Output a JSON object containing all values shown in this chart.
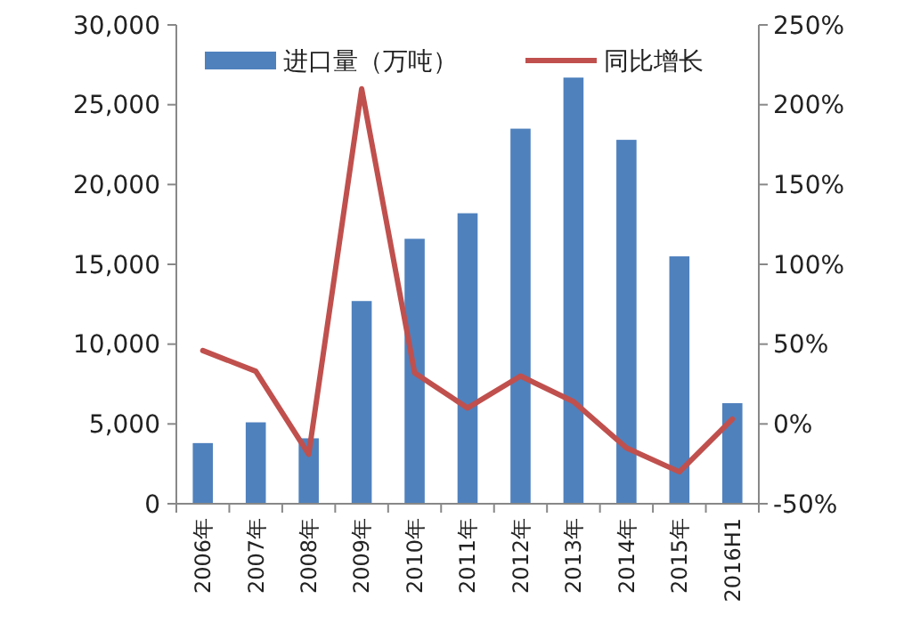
{
  "chart_data": {
    "type": "bar",
    "categories": [
      "2006年",
      "2007年",
      "2008年",
      "2009年",
      "2010年",
      "2011年",
      "2012年",
      "2013年",
      "2014年",
      "2015年",
      "2016H1"
    ],
    "series": [
      {
        "name": "进口量（万吨）",
        "color": "#4f81bd",
        "values": [
          3800,
          5100,
          4100,
          12700,
          16600,
          18200,
          23500,
          26700,
          22800,
          15500,
          6300
        ]
      },
      {
        "name": "同比增长",
        "type": "line",
        "axis": "y2",
        "color": "#c0504d",
        "values": [
          46,
          33,
          -19,
          210,
          32,
          10,
          30,
          14,
          -15,
          -30,
          3
        ]
      }
    ],
    "ylim": [
      0,
      30000
    ],
    "yticks": [
      {
        "value": 0,
        "label": "0"
      },
      {
        "value": 5000,
        "label": "5,000"
      },
      {
        "value": 10000,
        "label": "10,000"
      },
      {
        "value": 15000,
        "label": "15,000"
      },
      {
        "value": 20000,
        "label": "20,000"
      },
      {
        "value": 25000,
        "label": "25,000"
      },
      {
        "value": 30000,
        "label": "30,000"
      }
    ],
    "y2lim": [
      -50,
      250
    ],
    "y2ticks": [
      {
        "value": -50,
        "label": "-50%"
      },
      {
        "value": 0,
        "label": "0%"
      },
      {
        "value": 50,
        "label": "50%"
      },
      {
        "value": 100,
        "label": "100%"
      },
      {
        "value": 150,
        "label": "150%"
      },
      {
        "value": 200,
        "label": "200%"
      },
      {
        "value": 250,
        "label": "250%"
      }
    ],
    "legend": "top",
    "grid": false
  }
}
